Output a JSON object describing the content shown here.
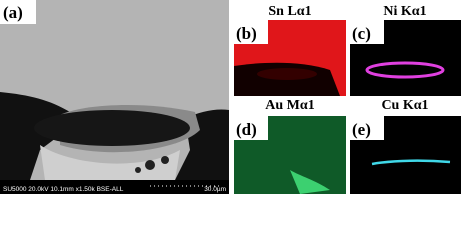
{
  "panels": [
    {
      "label": "(a)",
      "info": "SU5000 20.0kV 10.1mm x1.50k BSE-ALL",
      "scale_bar": "30.0µm"
    },
    {
      "label": "(b)",
      "element": "Sn Lα1"
    },
    {
      "label": "(c)",
      "element": "Ni Kα1"
    },
    {
      "label": "(d)",
      "element": "Au Mα1"
    },
    {
      "label": "(e)",
      "element": "Cu Kα1"
    }
  ]
}
